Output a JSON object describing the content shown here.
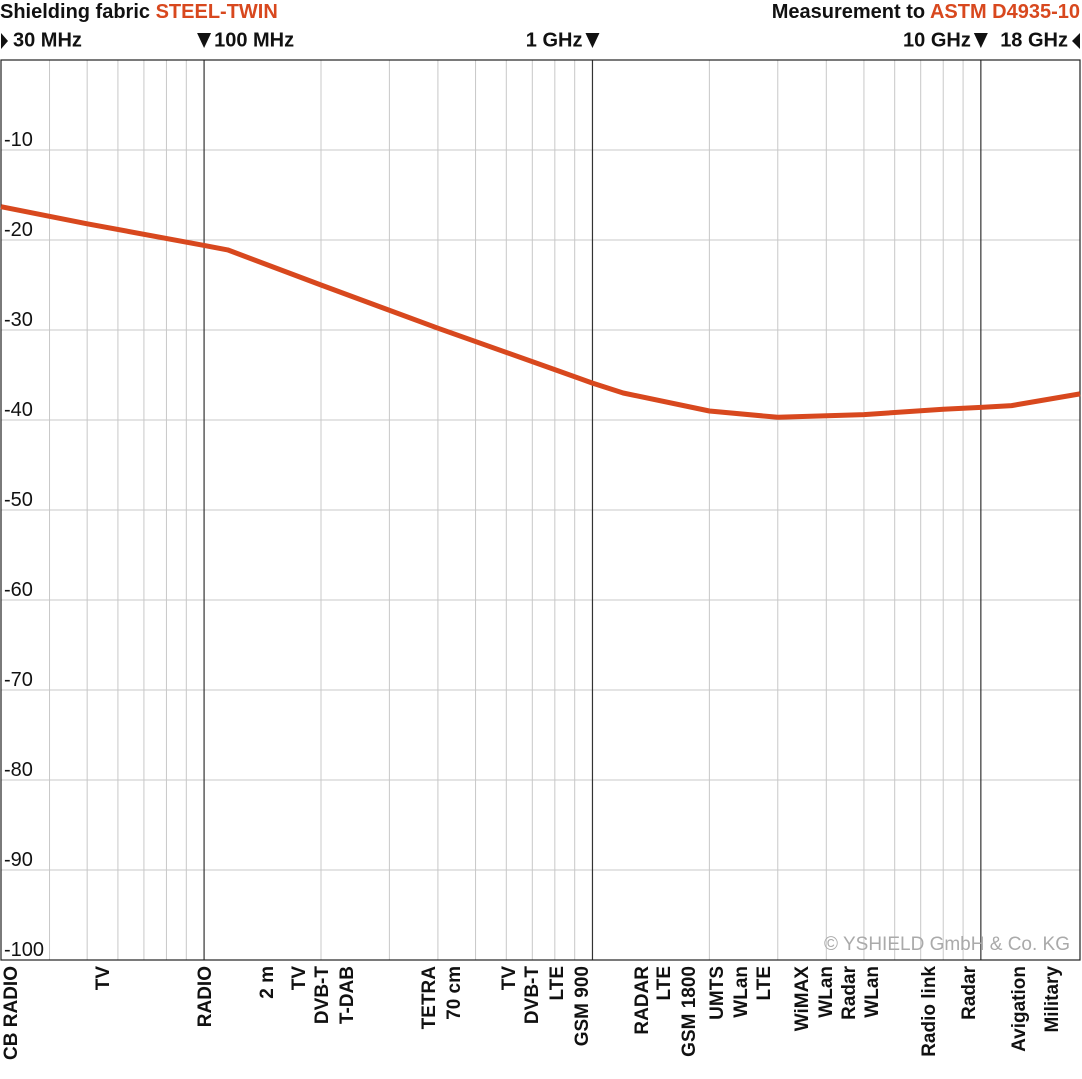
{
  "chart_data": {
    "type": "line",
    "title": "Shielding fabric",
    "product": "STEEL-TWIN",
    "standard_label": "Measurement to",
    "standard": "ASTM D4935-10",
    "copyright": "© YSHIELD GmbH & Co. KG",
    "log_x": true,
    "xlim": [
      30,
      18000
    ],
    "ylim": [
      -100,
      0
    ],
    "x": [
      30,
      50,
      100,
      115,
      200,
      400,
      800,
      1000,
      1200,
      2000,
      3000,
      5000,
      8000,
      10000,
      12000,
      18000
    ],
    "values": [
      -16.3,
      -18.2,
      -20.6,
      -21.1,
      -25,
      -29.8,
      -34.4,
      -35.9,
      -37,
      -39,
      -39.7,
      -39.4,
      -38.8,
      -38.6,
      -38.4,
      -37.1
    ],
    "color": "#d8481e",
    "xticks": [
      {
        "value": 30,
        "label": "30 MHz"
      },
      {
        "value": 100,
        "label": "100 MHz"
      },
      {
        "value": 1000,
        "label": "1 GHz"
      },
      {
        "value": 10000,
        "label": "10 GHz"
      },
      {
        "value": 18000,
        "label": "18 GHz"
      }
    ],
    "x_grid": [
      40,
      50,
      60,
      70,
      80,
      90,
      200,
      300,
      400,
      500,
      600,
      700,
      800,
      900,
      2000,
      3000,
      4000,
      5000,
      6000,
      7000,
      8000,
      9000
    ],
    "yticks": [
      -10,
      -20,
      -30,
      -40,
      -50,
      -60,
      -70,
      -80,
      -90,
      -100
    ],
    "grid": true,
    "band_labels": [
      "CB RADIO",
      "TV",
      "RADIO",
      "2 m",
      "TV",
      "DVB-T",
      "T-DAB",
      "TETRA",
      "70 cm",
      "TV",
      "DVB-T",
      "LTE",
      "GSM 900",
      "RADAR",
      "LTE",
      "GSM 1800",
      "UMTS",
      "WLan",
      "LTE",
      "WiMAX",
      "WLan",
      "Radar",
      "WLan",
      "Radio link",
      "Radar",
      "Avigation",
      "Military"
    ]
  }
}
